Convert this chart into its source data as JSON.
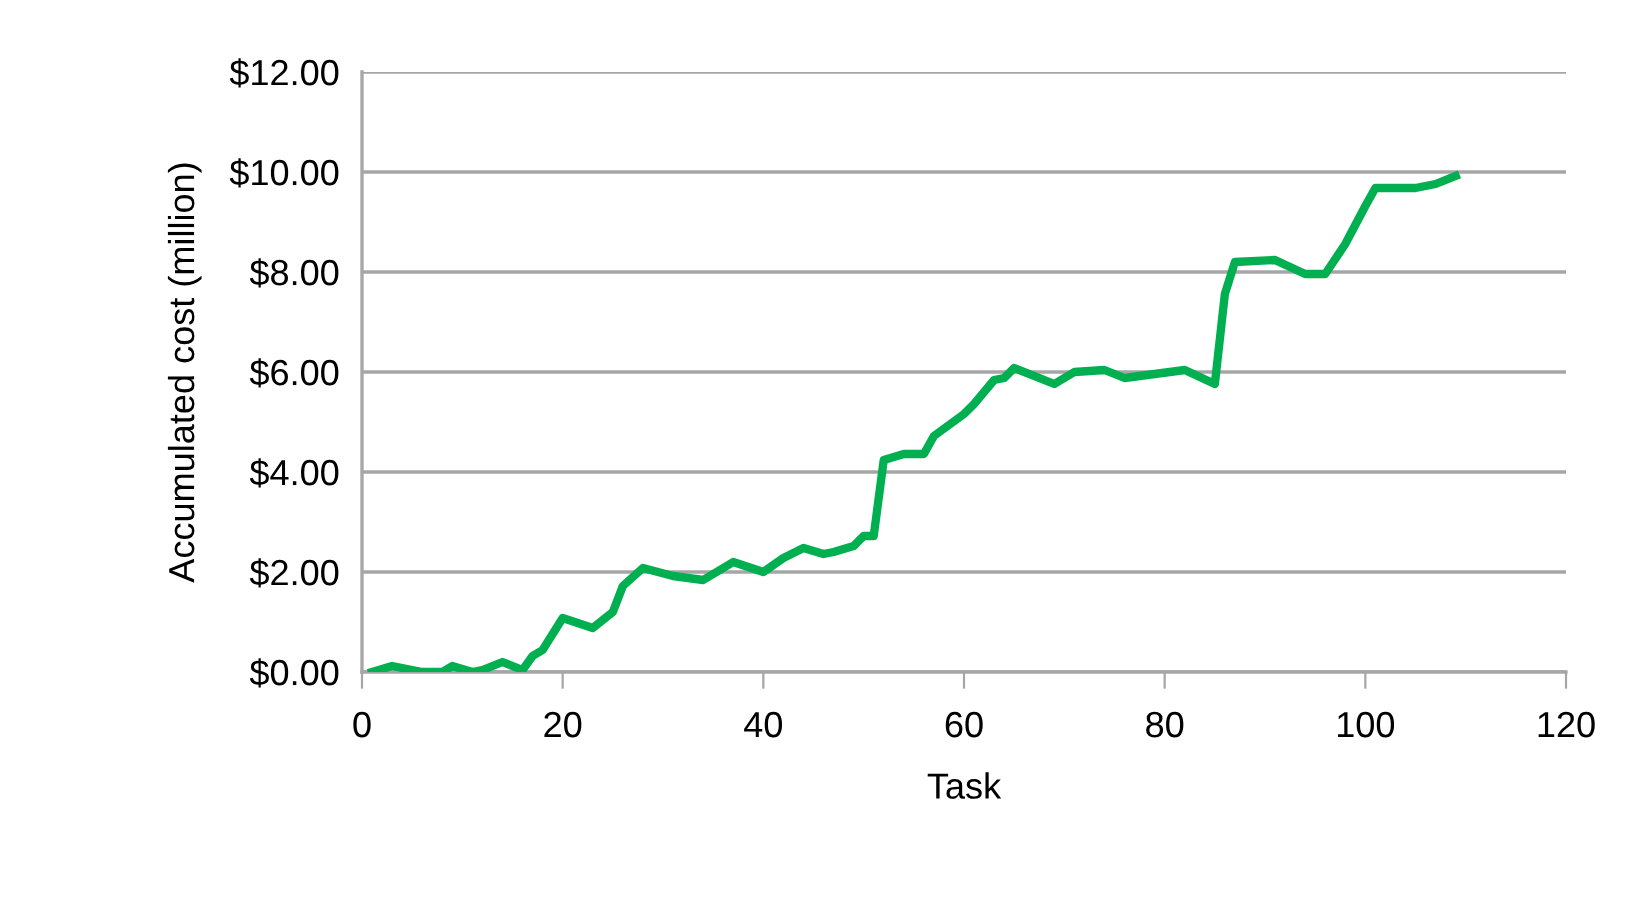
{
  "chart_data": {
    "type": "line",
    "xlabel": "Task",
    "ylabel": "Accumulated cost (million)",
    "x": [
      1,
      3,
      6,
      8,
      9,
      11,
      12,
      14,
      16,
      17,
      18,
      20,
      23,
      25,
      26,
      28,
      31,
      34,
      37,
      40,
      42,
      44,
      46,
      47,
      49,
      50,
      51,
      52,
      54,
      56,
      57,
      60,
      61,
      63,
      64,
      65,
      69,
      71,
      74,
      76,
      82,
      85,
      86,
      87,
      91,
      94,
      96,
      98,
      100,
      101,
      105,
      107,
      109
    ],
    "series": [
      {
        "color": "#00b050",
        "values": [
          0,
          0.12,
          0,
          0,
          0.12,
          0,
          0.04,
          0.2,
          0.04,
          0.32,
          0.44,
          1.08,
          0.88,
          1.2,
          1.72,
          2.08,
          1.92,
          1.84,
          2.2,
          2.0,
          2.28,
          2.48,
          2.36,
          2.4,
          2.52,
          2.72,
          2.72,
          4.24,
          4.36,
          4.36,
          4.72,
          5.16,
          5.36,
          5.84,
          5.88,
          6.08,
          5.76,
          6.0,
          6.04,
          5.88,
          6.04,
          5.76,
          7.56,
          8.2,
          8.24,
          7.96,
          7.96,
          8.56,
          9.32,
          9.68,
          9.68,
          9.76,
          9.92
        ]
      }
    ],
    "xlim": [
      0,
      120
    ],
    "xticks": [
      0,
      20,
      40,
      60,
      80,
      100,
      120
    ],
    "ylim": [
      0,
      12
    ],
    "yticks": [
      {
        "value": 0,
        "label": "$0.00"
      },
      {
        "value": 2,
        "label": "$2.00"
      },
      {
        "value": 4,
        "label": "$4.00"
      },
      {
        "value": 6,
        "label": "$6.00"
      },
      {
        "value": 8,
        "label": "$8.00"
      },
      {
        "value": 10,
        "label": "$10.00"
      },
      {
        "value": 12,
        "label": "$12.00"
      }
    ],
    "grid": "y",
    "marker": "none",
    "line_style": "solid"
  }
}
